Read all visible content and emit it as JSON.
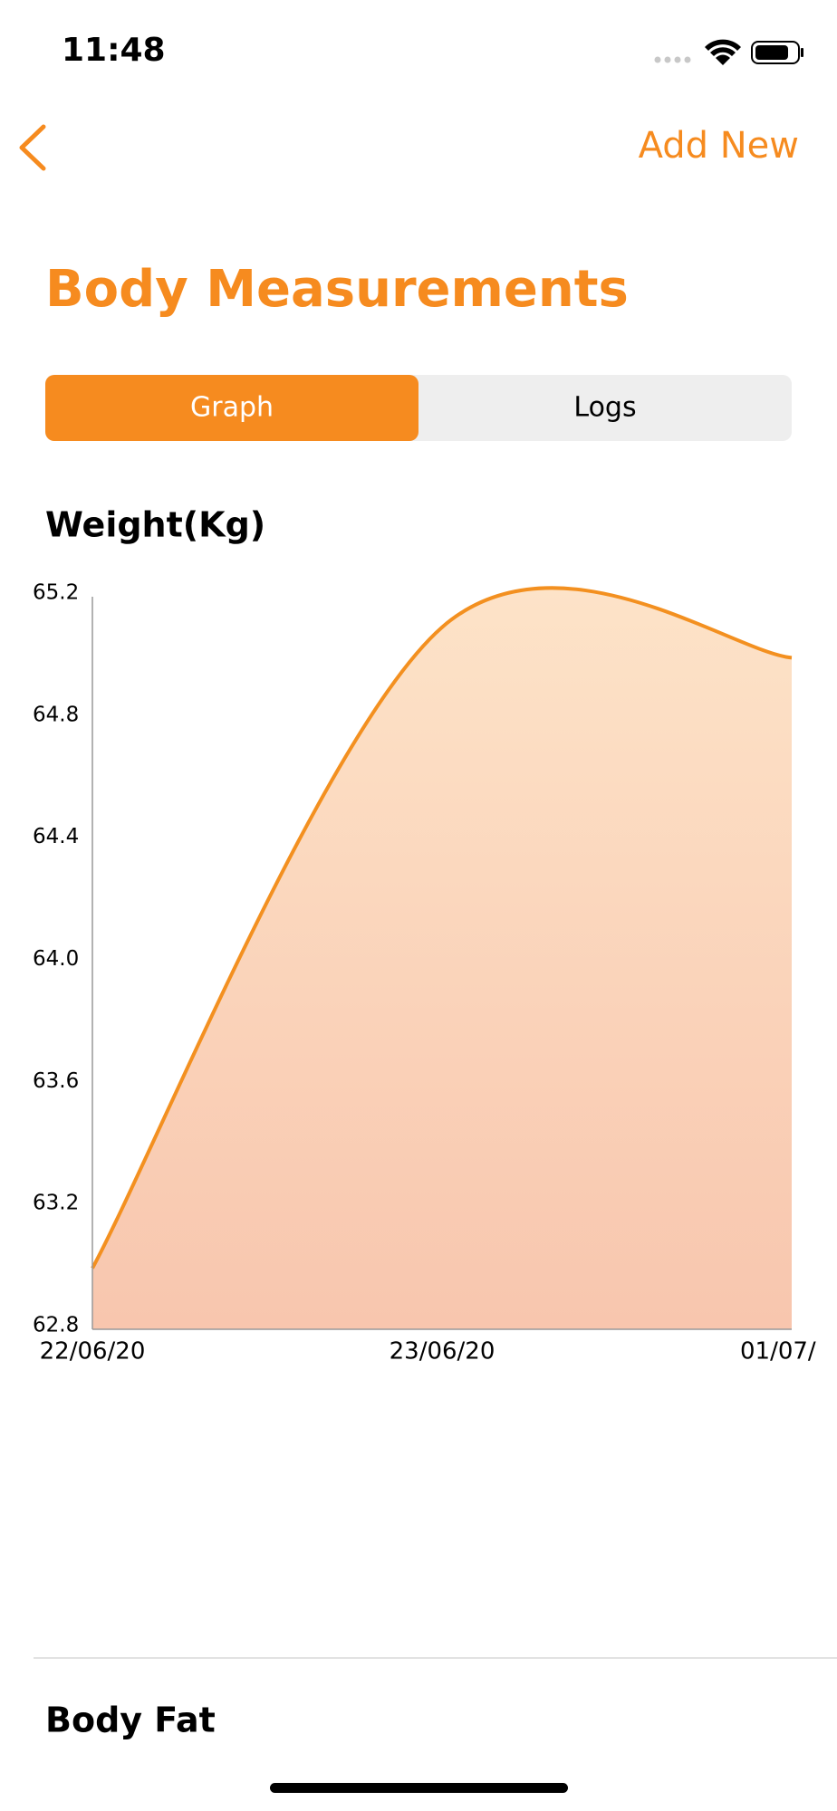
{
  "status_bar": {
    "time": "11:48"
  },
  "nav": {
    "action": "Add New"
  },
  "header": {
    "title": "Body Measurements"
  },
  "tabs": [
    "Graph",
    "Logs"
  ],
  "chart_data": {
    "type": "area",
    "title": "Weight(Kg)",
    "categories": [
      "22/06/20",
      "23/06/20",
      "01/07/"
    ],
    "values": [
      63.0,
      65.1,
      65.0
    ],
    "color": "#F39020",
    "fill_colors": [
      "#FDE3C8",
      "#F8C6AE"
    ],
    "ylim": [
      62.8,
      65.2
    ],
    "yticks": [
      62.8,
      63.2,
      63.6,
      {
        "value": 64,
        "label": "64.0"
      },
      64.4,
      64.8,
      65.2
    ],
    "grid": false
  },
  "section": {
    "title": "Body Fat"
  }
}
